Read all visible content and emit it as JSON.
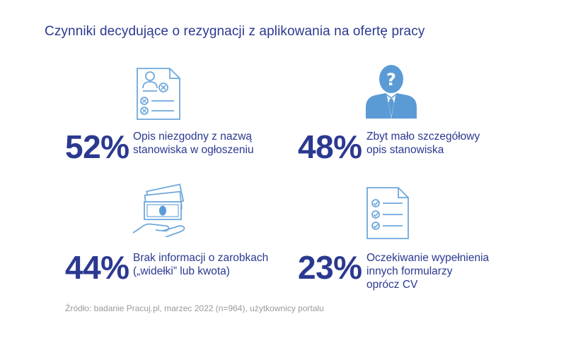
{
  "title": "Czynniki decydujące o rezygnacji z aplikowania na ofertę pracy",
  "colors": {
    "primary": "#2b3990",
    "icon_light": "#6fa8dc",
    "icon_fill": "#5b9bd5",
    "source": "#9a9a9a"
  },
  "chart_data": {
    "type": "table",
    "title": "Czynniki decydujące o rezygnacji z aplikowania na ofertę pracy",
    "items": [
      {
        "value_label": "52%",
        "value": 52,
        "lines": [
          "Opis niezgodny z nazwą",
          "stanowiska w ogłoszeniu"
        ],
        "icon": "document-profile-icon"
      },
      {
        "value_label": "48%",
        "value": 48,
        "lines": [
          "Zbyt mało szczegółowy",
          "opis stanowiska"
        ],
        "icon": "question-person-icon"
      },
      {
        "value_label": "44%",
        "value": 44,
        "lines": [
          "Brak informacji o zarobkach",
          "(„widełki” lub kwota)"
        ],
        "icon": "money-hand-icon"
      },
      {
        "value_label": "23%",
        "value": 23,
        "lines": [
          "Oczekiwanie wypełnienia",
          "innych formularzy",
          "oprócz CV"
        ],
        "icon": "checklist-document-icon"
      }
    ]
  },
  "source": "Źródło: badanie Pracuj.pl, marzec 2022 (n=964), użytkownicy portalu"
}
